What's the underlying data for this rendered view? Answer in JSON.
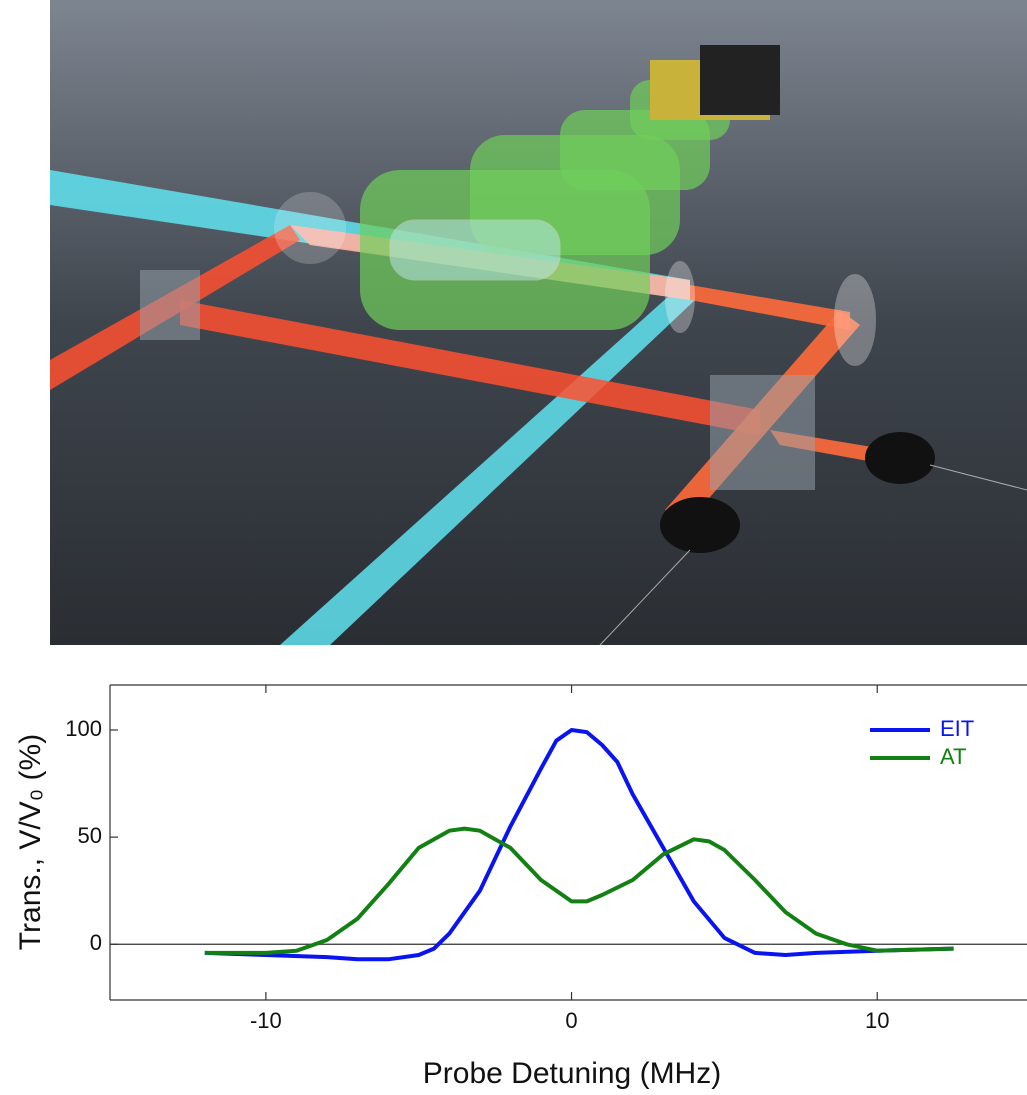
{
  "chart_data": {
    "type": "line",
    "xlabel": "Probe Detuning (MHz)",
    "ylabel": "Trans., V/V₀ (%)",
    "xlim": [
      -15.1,
      14.9
    ],
    "ylim": [
      -26,
      121
    ],
    "xticks": [
      -10,
      0,
      10
    ],
    "yticks": [
      0,
      50,
      100
    ],
    "zero_line": true,
    "legend": "upper right",
    "series": [
      {
        "name": "EIT",
        "color": "#0a14f0",
        "x": [
          -12,
          -10,
          -8,
          -7,
          -6,
          -5,
          -4.5,
          -4,
          -3,
          -2,
          -1,
          -0.5,
          0,
          0.5,
          1,
          1.5,
          2,
          3,
          4,
          5,
          6,
          7,
          8,
          10,
          12.5
        ],
        "values": [
          -4,
          -5,
          -6,
          -7,
          -7,
          -5,
          -2,
          5,
          25,
          55,
          82,
          95,
          100,
          99,
          93,
          85,
          70,
          45,
          20,
          3,
          -4,
          -5,
          -4,
          -3,
          -2
        ]
      },
      {
        "name": "AT",
        "color": "#138013",
        "x": [
          -12,
          -10,
          -9,
          -8,
          -7,
          -6,
          -5,
          -4,
          -3.5,
          -3,
          -2,
          -1,
          0,
          0.5,
          1,
          2,
          3,
          4,
          4.5,
          5,
          6,
          7,
          8,
          9,
          10,
          12.5
        ],
        "values": [
          -4,
          -4,
          -3,
          2,
          12,
          28,
          45,
          53,
          54,
          53,
          45,
          30,
          20,
          20,
          23,
          30,
          42,
          49,
          48,
          44,
          30,
          15,
          5,
          0,
          -3,
          -2
        ]
      }
    ]
  }
}
